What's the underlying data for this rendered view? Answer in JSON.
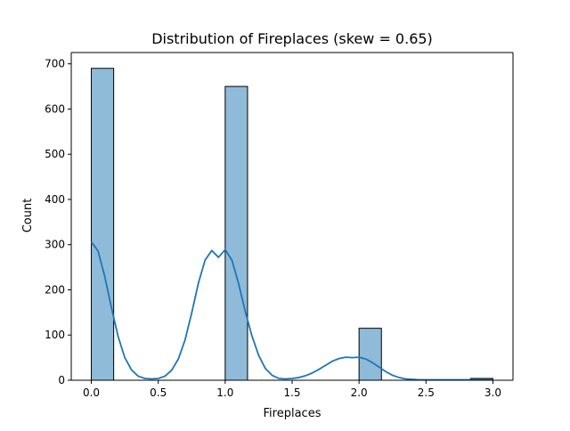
{
  "chart_data": {
    "type": "bar",
    "title": "Distribution of Fireplaces (skew = 0.65)",
    "xlabel": "Fireplaces",
    "ylabel": "Count",
    "xlim": [
      -0.15,
      3.15
    ],
    "ylim": [
      0,
      725
    ],
    "x_ticks": [
      0.0,
      0.5,
      1.0,
      1.5,
      2.0,
      2.5,
      3.0
    ],
    "x_tick_labels": [
      "0.0",
      "0.5",
      "1.0",
      "1.5",
      "2.0",
      "2.5",
      "3.0"
    ],
    "y_ticks": [
      0,
      100,
      200,
      300,
      400,
      500,
      600,
      700
    ],
    "y_tick_labels": [
      "0",
      "100",
      "200",
      "300",
      "400",
      "500",
      "600",
      "700"
    ],
    "grid": false,
    "bars": [
      {
        "x0": 0.0,
        "x1": 0.167,
        "value": 690
      },
      {
        "x0": 1.0,
        "x1": 1.167,
        "value": 650
      },
      {
        "x0": 2.0,
        "x1": 2.167,
        "value": 115
      },
      {
        "x0": 2.833,
        "x1": 3.0,
        "value": 4
      }
    ],
    "kde": {
      "x": [
        0.0,
        0.05,
        0.1,
        0.15,
        0.2,
        0.25,
        0.3,
        0.35,
        0.4,
        0.45,
        0.5,
        0.55,
        0.6,
        0.65,
        0.7,
        0.75,
        0.8,
        0.85,
        0.9,
        0.95,
        1.0,
        1.05,
        1.1,
        1.15,
        1.2,
        1.25,
        1.3,
        1.35,
        1.4,
        1.45,
        1.5,
        1.55,
        1.6,
        1.65,
        1.7,
        1.75,
        1.8,
        1.85,
        1.9,
        1.95,
        2.0,
        2.05,
        2.1,
        2.15,
        2.2,
        2.25,
        2.3,
        2.35,
        2.4,
        2.45,
        2.5,
        2.6,
        2.7,
        2.8,
        2.9,
        3.0
      ],
      "y": [
        306,
        286,
        230,
        161,
        97,
        50,
        23,
        9,
        4,
        3,
        4,
        9,
        22,
        47,
        89,
        149,
        215,
        266,
        287,
        272,
        289,
        266,
        214,
        152,
        98,
        55,
        26,
        11,
        4,
        3,
        4,
        6,
        10,
        16,
        24,
        33,
        42,
        48,
        51,
        50,
        51,
        47,
        39,
        29,
        19,
        11,
        6,
        3,
        2,
        1,
        1,
        1,
        1,
        1,
        1,
        1
      ]
    },
    "colors": {
      "bar_fill": "#8fbbd9",
      "bar_edge": "#000000",
      "kde_line": "#1f77b4",
      "axes": "#000000"
    }
  }
}
